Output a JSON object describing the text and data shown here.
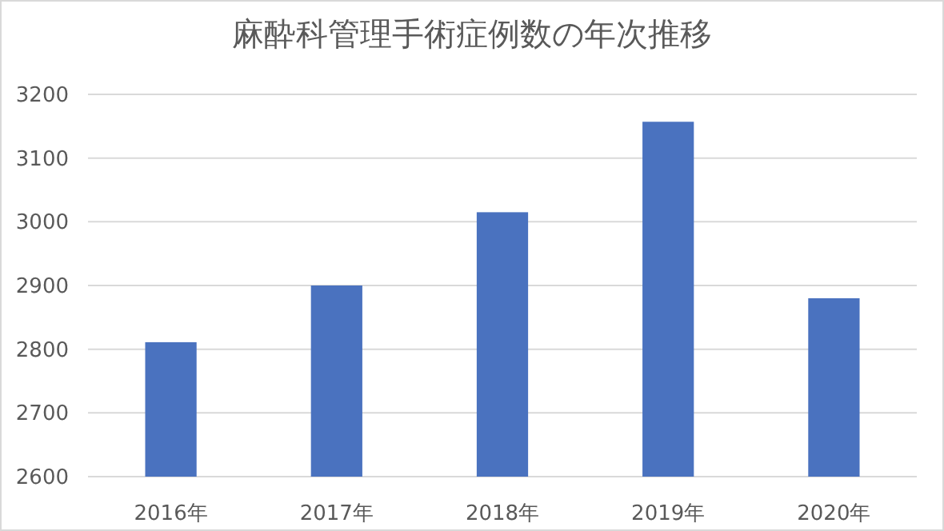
{
  "chart_data": {
    "type": "bar",
    "title": "麻酔科管理手術症例数の年次推移",
    "categories": [
      "2016年",
      "2017年",
      "2018年",
      "2019年",
      "2020年"
    ],
    "values": [
      2811,
      2900,
      3015,
      3157,
      2880
    ],
    "color": "#4a72bf",
    "ylim": [
      2600,
      3200
    ],
    "yticks": [
      2600,
      2700,
      2800,
      2900,
      3000,
      3100,
      3200
    ],
    "grid": "y"
  }
}
